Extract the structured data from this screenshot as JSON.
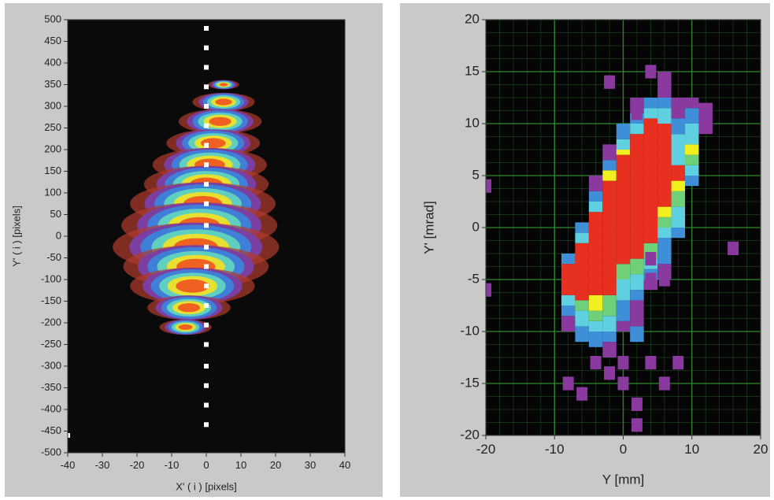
{
  "chart_data": [
    {
      "type": "beamlets",
      "xlabel": "X' ( i ) [pixels]",
      "ylabel": "Y' ( i ) [pixels]",
      "xlim": [
        -40,
        40
      ],
      "ylim": [
        -500,
        500
      ],
      "xticks": [
        -40,
        -30,
        -20,
        -10,
        0,
        10,
        20,
        30,
        40
      ],
      "yticks": [
        -500,
        -450,
        -400,
        -350,
        -300,
        -250,
        -200,
        -150,
        -100,
        -50,
        0,
        50,
        100,
        150,
        200,
        250,
        300,
        350,
        400,
        450,
        500
      ],
      "background": "#0a0a0a",
      "colormap": [
        "#b03a2e",
        "#7a3fa0",
        "#3f7fd8",
        "#5fd0c0",
        "#e8e030",
        "#f06020"
      ],
      "beamlets": [
        {
          "x": 5,
          "y": 350,
          "half_width": 3
        },
        {
          "x": 5,
          "y": 310,
          "half_width": 6
        },
        {
          "x": 4,
          "y": 265,
          "half_width": 8
        },
        {
          "x": 2,
          "y": 215,
          "half_width": 9
        },
        {
          "x": 1,
          "y": 165,
          "half_width": 11
        },
        {
          "x": 0,
          "y": 120,
          "half_width": 12
        },
        {
          "x": -1,
          "y": 75,
          "half_width": 14
        },
        {
          "x": -2,
          "y": 25,
          "half_width": 15
        },
        {
          "x": -3,
          "y": -25,
          "half_width": 16
        },
        {
          "x": -3,
          "y": -70,
          "half_width": 14
        },
        {
          "x": -4,
          "y": -115,
          "half_width": 12
        },
        {
          "x": -5,
          "y": -165,
          "half_width": 8
        },
        {
          "x": -6,
          "y": -210,
          "half_width": 5
        }
      ],
      "markers": {
        "color": "#ffffff",
        "x": [
          0,
          0,
          0,
          0,
          0,
          0,
          0,
          0,
          0,
          0,
          0,
          0,
          0,
          0,
          0,
          0,
          0,
          0,
          0,
          0,
          0,
          -40
        ],
        "y": [
          480,
          435,
          390,
          345,
          300,
          255,
          210,
          165,
          120,
          75,
          25,
          -25,
          -70,
          -115,
          -160,
          -205,
          -250,
          -300,
          -345,
          -390,
          -435,
          -460
        ]
      }
    },
    {
      "type": "phase-space",
      "xlabel": "Y [mm]",
      "ylabel": "Y' [mrad]",
      "xlim": [
        -20,
        20
      ],
      "ylim": [
        -20,
        20
      ],
      "xticks": [
        -20,
        -10,
        0,
        10,
        20
      ],
      "yticks": [
        -20,
        -15,
        -10,
        -5,
        0,
        5,
        10,
        15,
        20
      ],
      "grid": true,
      "grid_color": "#2f8a2f",
      "background": "#050505",
      "cell_width": 2,
      "cell_height": 1.3,
      "colormap": [
        "#8a3a9e",
        "#3f8fd8",
        "#5fd0e0",
        "#6fd07a",
        "#f0f020",
        "#e83020"
      ],
      "columns": [
        {
          "x": -8,
          "edges": [
            -10,
            -8.5,
            -7.5,
            -6.5,
            -3.5,
            -2.5
          ],
          "levels": [
            0,
            1,
            2,
            5,
            1
          ]
        },
        {
          "x": -6,
          "edges": [
            -11,
            -9.5,
            -8,
            -7,
            -1.5,
            -0.5,
            0.5
          ],
          "levels": [
            1,
            2,
            3,
            5,
            2,
            1
          ]
        },
        {
          "x": -4,
          "edges": [
            -11.5,
            -10,
            -9,
            -8,
            -6.5,
            1.5,
            2.5,
            3.5,
            5
          ],
          "levels": [
            1,
            2,
            3,
            4,
            5,
            2,
            1,
            0
          ]
        },
        {
          "x": -2,
          "edges": [
            -12.5,
            -11,
            -10,
            -8.5,
            -6.5,
            4.5,
            5.5,
            6.5,
            8
          ],
          "levels": [
            0,
            1,
            2,
            3,
            5,
            4,
            1,
            0
          ]
        },
        {
          "x": 0,
          "edges": [
            -10,
            -9,
            -7,
            -5,
            -3.5,
            7,
            7.5,
            8.5,
            10
          ],
          "levels": [
            0,
            1,
            2,
            3,
            5,
            4,
            2,
            1
          ]
        },
        {
          "x": 2,
          "edges": [
            -11,
            -9.5,
            -7,
            -6,
            -4.5,
            -3,
            9,
            10,
            11,
            12.5
          ],
          "levels": [
            1,
            0,
            1,
            2,
            3,
            5,
            2,
            1,
            0
          ]
        },
        {
          "x": 4,
          "edges": [
            -6,
            -5,
            -4,
            -3,
            -1.5,
            10.5,
            11.5,
            12.5
          ],
          "levels": [
            0,
            1,
            2,
            3,
            5,
            2,
            1
          ]
        },
        {
          "x": 6,
          "edges": [
            -5,
            -3.5,
            -1,
            0,
            1,
            2,
            10,
            11.5,
            12.5,
            15
          ],
          "levels": [
            0,
            1,
            2,
            3,
            4,
            5,
            2,
            1,
            0
          ]
        },
        {
          "x": 8,
          "edges": [
            -1,
            0,
            2,
            3.5,
            4.5,
            6,
            9,
            10.5,
            12.5
          ],
          "levels": [
            1,
            2,
            3,
            4,
            5,
            2,
            1,
            0
          ]
        },
        {
          "x": 10,
          "edges": [
            4,
            5,
            6,
            7,
            8,
            10,
            11.5,
            12.5
          ],
          "levels": [
            1,
            2,
            3,
            4,
            2,
            1,
            0
          ]
        },
        {
          "x": 12,
          "edges": [
            9,
            12
          ],
          "levels": [
            0
          ]
        }
      ],
      "points": [
        [
          -20,
          4
        ],
        [
          -20,
          -6
        ],
        [
          16,
          -2
        ],
        [
          -6,
          -16
        ],
        [
          -8,
          -15
        ],
        [
          -4,
          -13
        ],
        [
          -2,
          -14
        ],
        [
          0,
          -15
        ],
        [
          2,
          -17
        ],
        [
          2,
          -19
        ],
        [
          0,
          -13
        ],
        [
          4,
          -13
        ],
        [
          8,
          -13
        ],
        [
          6,
          -15
        ],
        [
          4,
          -5
        ],
        [
          6,
          -5
        ],
        [
          4,
          -3
        ],
        [
          2,
          11
        ],
        [
          -2,
          14
        ],
        [
          4,
          15
        ]
      ]
    }
  ]
}
